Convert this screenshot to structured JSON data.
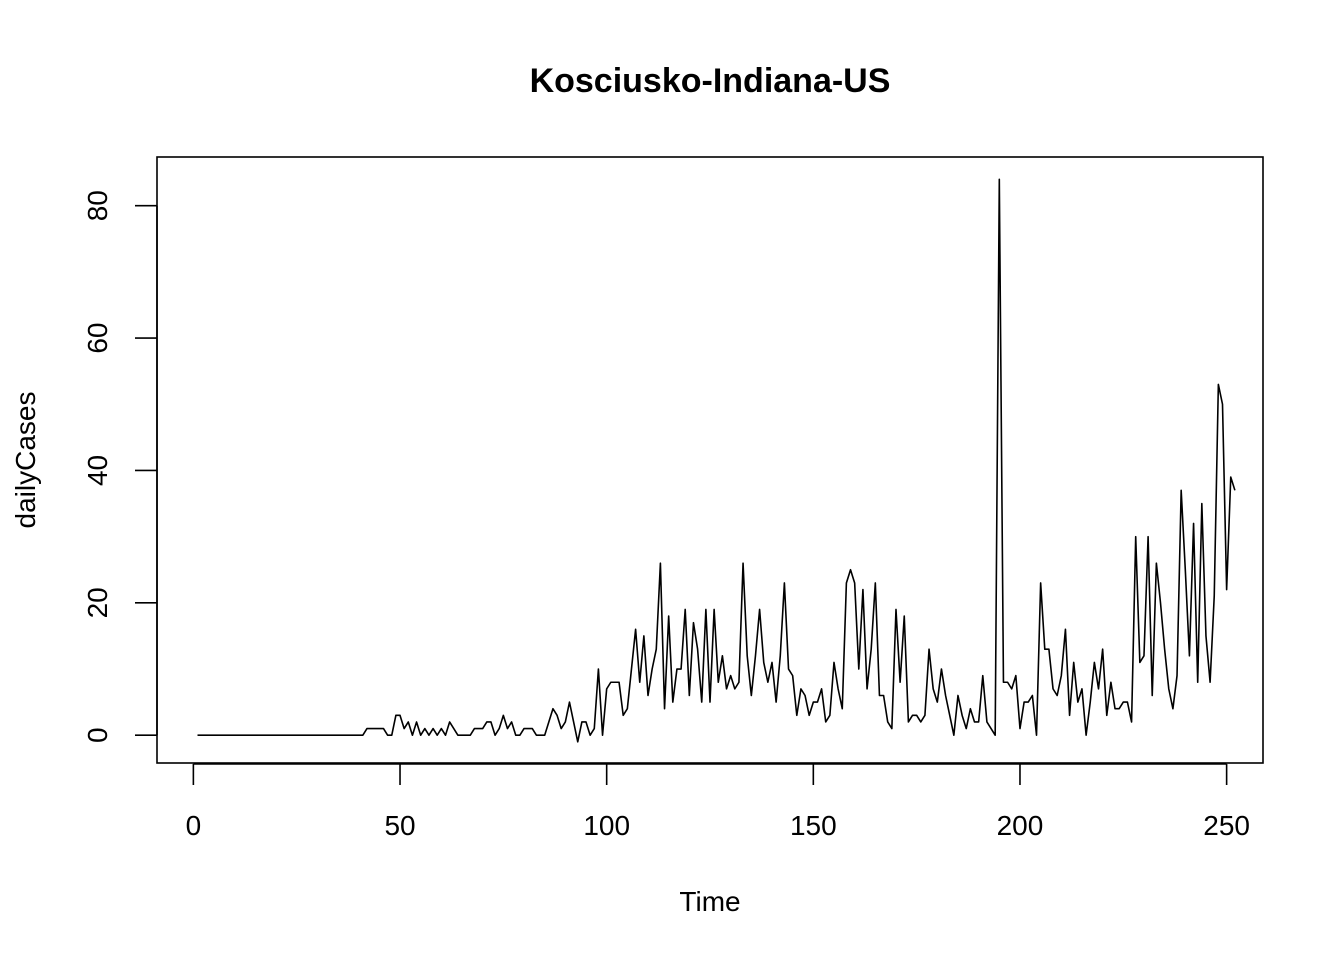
{
  "chart_data": {
    "type": "line",
    "title": "Kosciusko-Indiana-US",
    "xlabel": "Time",
    "ylabel": "dailyCases",
    "xlim": [
      -8.8,
      258.8
    ],
    "ylim": [
      -4.2,
      87.36
    ],
    "x_ticks": [
      0,
      50,
      100,
      150,
      200,
      250
    ],
    "y_ticks": [
      0,
      20,
      40,
      60,
      80
    ],
    "grid": false,
    "legend": "none",
    "color": "#000000",
    "x_start": 1,
    "values": [
      0,
      0,
      0,
      0,
      0,
      0,
      0,
      0,
      0,
      0,
      0,
      0,
      0,
      0,
      0,
      0,
      0,
      0,
      0,
      0,
      0,
      0,
      0,
      0,
      0,
      0,
      0,
      0,
      0,
      0,
      0,
      0,
      0,
      0,
      0,
      0,
      0,
      0,
      0,
      0,
      0,
      1,
      1,
      1,
      1,
      1,
      0,
      0,
      3,
      3,
      1,
      2,
      0,
      2,
      0,
      1,
      0,
      1,
      0,
      1,
      0,
      2,
      1,
      0,
      0,
      0,
      0,
      1,
      1,
      1,
      2,
      2,
      0,
      1,
      3,
      1,
      2,
      0,
      0,
      1,
      1,
      1,
      0,
      0,
      0,
      2,
      4,
      3,
      1,
      2,
      5,
      2,
      -1,
      2,
      2,
      0,
      1,
      10,
      0,
      7,
      8,
      8,
      8,
      3,
      4,
      10,
      16,
      8,
      15,
      6,
      10,
      13,
      26,
      4,
      18,
      5,
      10,
      10,
      19,
      6,
      17,
      13,
      5,
      19,
      5,
      19,
      8,
      12,
      7,
      9,
      7,
      8,
      26,
      12,
      6,
      12,
      19,
      11,
      8,
      11,
      5,
      12,
      23,
      10,
      9,
      3,
      7,
      6,
      3,
      5,
      5,
      7,
      2,
      3,
      11,
      7,
      4,
      23,
      25,
      23,
      10,
      22,
      7,
      13,
      23,
      6,
      6,
      2,
      1,
      19,
      8,
      18,
      2,
      3,
      3,
      2,
      3,
      13,
      7,
      5,
      10,
      6,
      3,
      0,
      6,
      3,
      1,
      4,
      2,
      2,
      9,
      2,
      1,
      0,
      84,
      8,
      8,
      7,
      9,
      1,
      5,
      5,
      6,
      0,
      23,
      13,
      13,
      7,
      6,
      9,
      16,
      3,
      11,
      5,
      7,
      0,
      5,
      11,
      7,
      13,
      3,
      8,
      4,
      4,
      5,
      5,
      2,
      30,
      11,
      12,
      30,
      6,
      26,
      20,
      13,
      7,
      4,
      9,
      37,
      25,
      12,
      32,
      8,
      35,
      15,
      8,
      21,
      53,
      50,
      22,
      39,
      37
    ]
  }
}
